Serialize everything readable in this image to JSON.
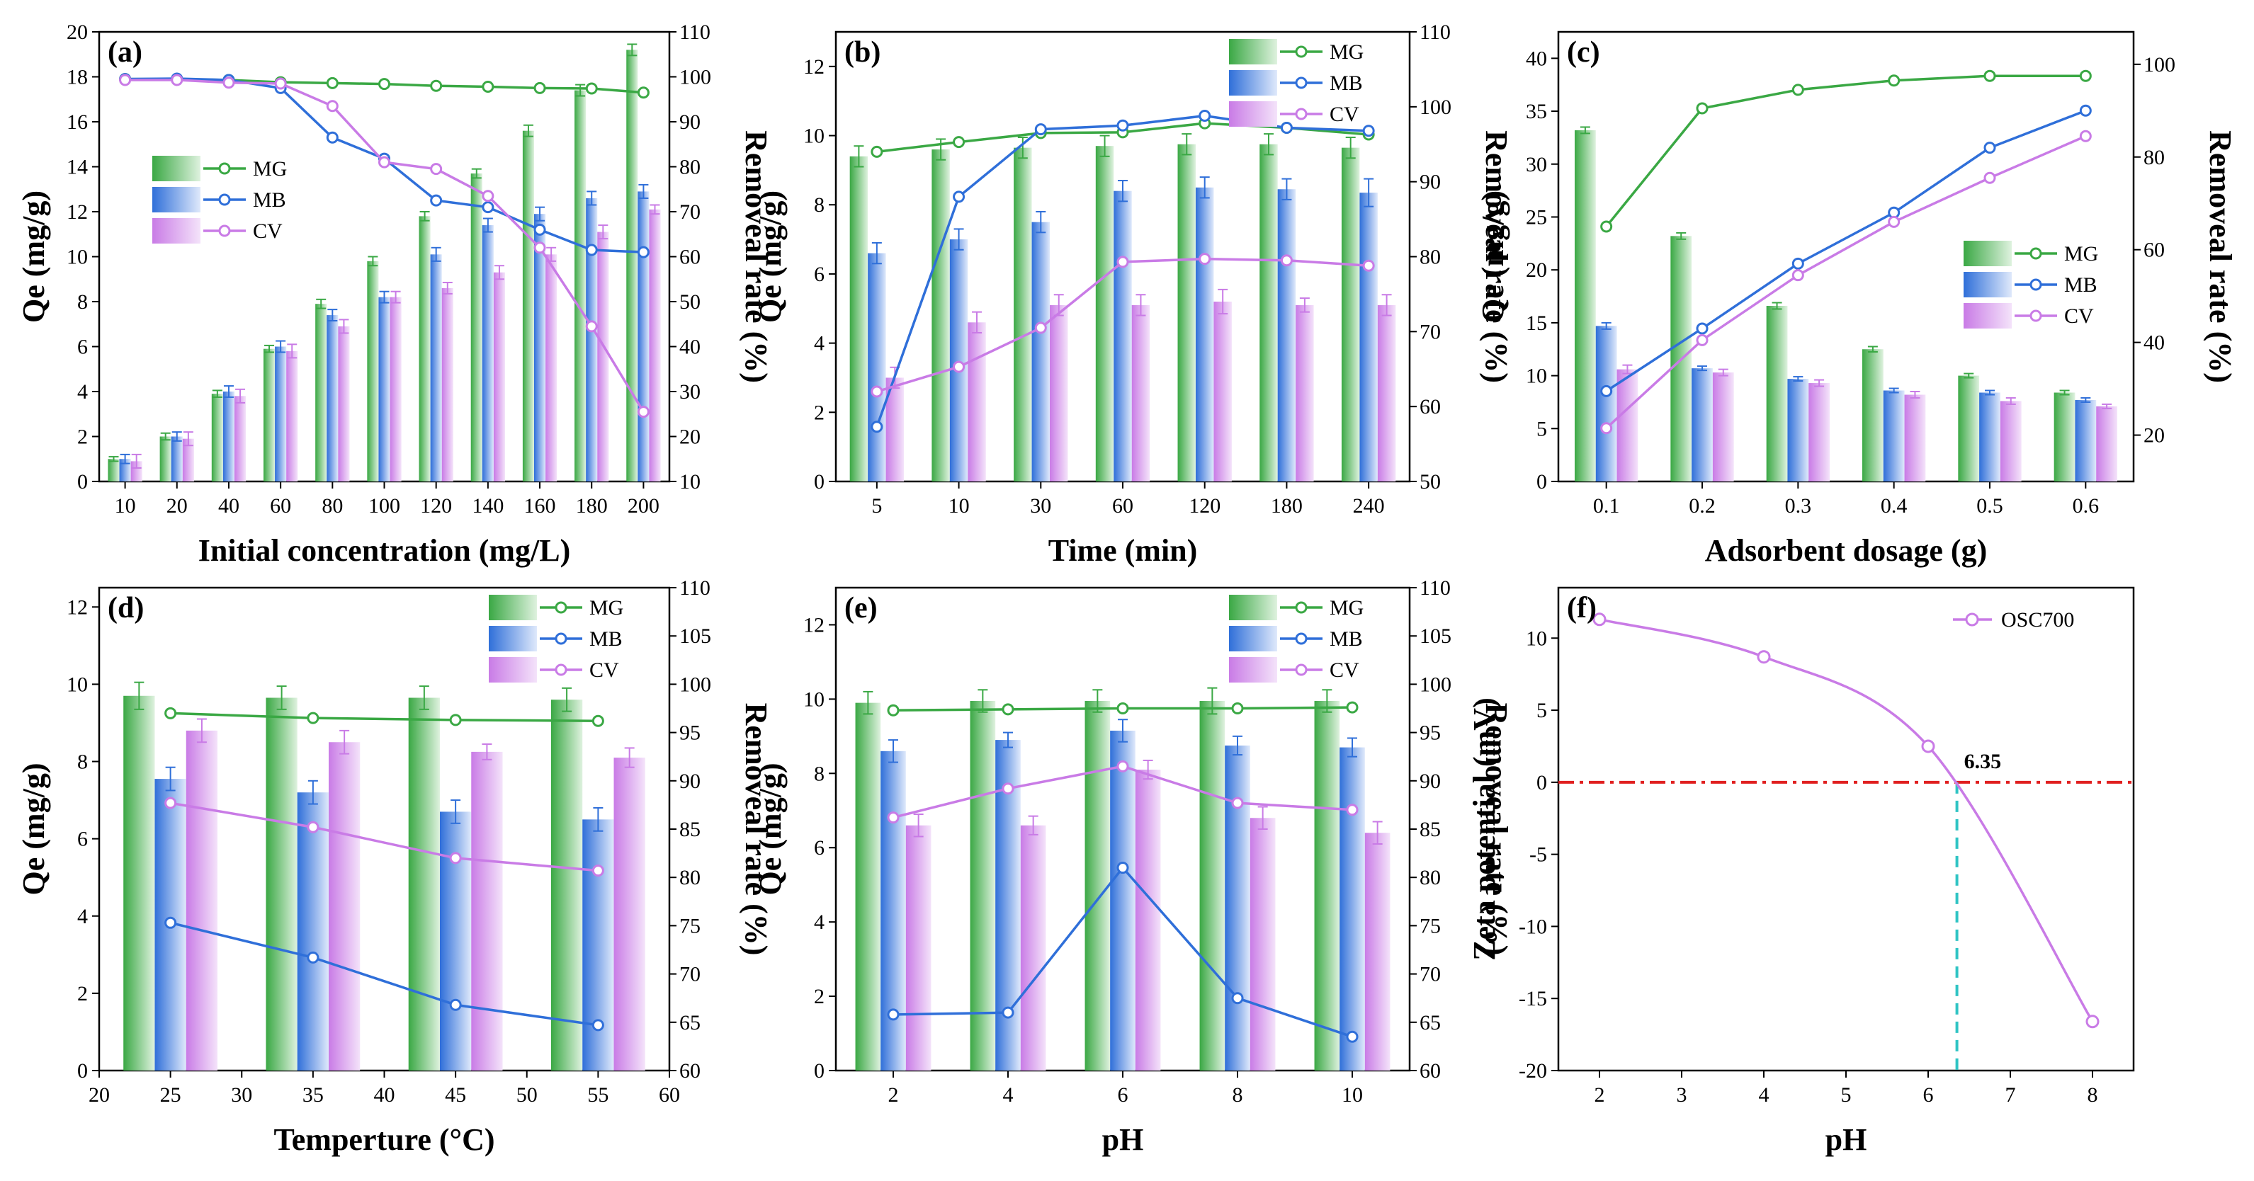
{
  "colors": {
    "MG": "#3aa844",
    "MG_light": "#dff2df",
    "MB": "#2f6fd9",
    "MB_light": "#dfe9fb",
    "CV": "#c97be6",
    "CV_light": "#f4e3fa",
    "zero_line": "#e02020",
    "pzc_line": "#30c4c4"
  },
  "chart_data": [
    {
      "panel": "(a)",
      "type": "bar+line",
      "xlabel": "Initial concentration (mg/L)",
      "ylabel": "Qe (mg/g)",
      "y2label": "Removeal rate (%)",
      "categories": [
        "10",
        "20",
        "40",
        "60",
        "80",
        "100",
        "120",
        "140",
        "160",
        "180",
        "200"
      ],
      "ylim": [
        0,
        20
      ],
      "yticks": [
        0,
        2,
        4,
        6,
        8,
        10,
        12,
        14,
        16,
        18,
        20
      ],
      "y2lim": [
        10,
        110
      ],
      "y2ticks": [
        10,
        20,
        30,
        40,
        50,
        60,
        70,
        80,
        90,
        100,
        110
      ],
      "legend": [
        "MG",
        "MB",
        "CV"
      ],
      "legend_pos": "center-left",
      "bars": [
        {
          "name": "MG",
          "values": [
            1.0,
            2.0,
            3.9,
            5.9,
            7.9,
            9.8,
            11.8,
            13.7,
            15.6,
            17.4,
            19.2
          ],
          "err": [
            0.1,
            0.15,
            0.15,
            0.15,
            0.2,
            0.2,
            0.2,
            0.2,
            0.25,
            0.25,
            0.25
          ]
        },
        {
          "name": "MB",
          "values": [
            1.0,
            2.0,
            4.0,
            6.0,
            7.4,
            8.2,
            10.1,
            11.4,
            11.9,
            12.6,
            12.9
          ],
          "err": [
            0.2,
            0.2,
            0.25,
            0.25,
            0.25,
            0.25,
            0.3,
            0.3,
            0.3,
            0.3,
            0.3
          ]
        },
        {
          "name": "CV",
          "values": [
            0.9,
            1.9,
            3.8,
            5.8,
            6.9,
            8.2,
            8.6,
            9.3,
            10.1,
            11.1,
            12.1
          ],
          "err": [
            0.3,
            0.3,
            0.3,
            0.3,
            0.3,
            0.25,
            0.25,
            0.3,
            0.3,
            0.3,
            0.2
          ]
        }
      ],
      "lines": [
        {
          "name": "MG",
          "values": [
            99.5,
            99.5,
            99.3,
            98.8,
            98.6,
            98.4,
            98.0,
            97.8,
            97.5,
            97.4,
            96.5
          ]
        },
        {
          "name": "MB",
          "values": [
            99.5,
            99.6,
            99.3,
            97.5,
            86.5,
            81.8,
            72.5,
            71.0,
            66.0,
            61.5,
            61.0
          ]
        },
        {
          "name": "CV",
          "values": [
            99.3,
            99.3,
            98.7,
            98.5,
            93.5,
            81.0,
            79.5,
            73.5,
            62.0,
            44.5,
            25.5
          ]
        }
      ]
    },
    {
      "panel": "(b)",
      "type": "bar+line",
      "xlabel": "Time (min)",
      "ylabel": "Qe (mg/g)",
      "y2label": "Removeal rate (%)",
      "categories": [
        "5",
        "10",
        "30",
        "60",
        "120",
        "180",
        "240"
      ],
      "ylim": [
        0,
        13
      ],
      "yticks": [
        0,
        2,
        4,
        6,
        8,
        10,
        12
      ],
      "y2lim": [
        50,
        110
      ],
      "y2ticks": [
        50,
        60,
        70,
        80,
        90,
        100,
        110
      ],
      "legend": [
        "MG",
        "MB",
        "CV"
      ],
      "legend_pos": "top-right",
      "bars": [
        {
          "name": "MG",
          "values": [
            9.4,
            9.6,
            9.65,
            9.7,
            9.75,
            9.75,
            9.65
          ],
          "err": [
            0.3,
            0.3,
            0.3,
            0.3,
            0.3,
            0.3,
            0.3
          ]
        },
        {
          "name": "MB",
          "values": [
            6.6,
            7.0,
            7.5,
            8.4,
            8.5,
            8.45,
            8.35
          ],
          "err": [
            0.3,
            0.3,
            0.3,
            0.3,
            0.3,
            0.3,
            0.4
          ]
        },
        {
          "name": "CV",
          "values": [
            3.0,
            4.6,
            5.1,
            5.1,
            5.2,
            5.1,
            5.1
          ],
          "err": [
            0.3,
            0.3,
            0.3,
            0.3,
            0.35,
            0.2,
            0.3
          ]
        }
      ],
      "lines": [
        {
          "name": "MG",
          "values": [
            94.0,
            95.3,
            96.5,
            96.6,
            97.8,
            97.2,
            96.3
          ]
        },
        {
          "name": "MB",
          "values": [
            57.3,
            88.0,
            97.0,
            97.5,
            98.8,
            97.2,
            96.8
          ]
        },
        {
          "name": "CV",
          "values": [
            62.0,
            65.3,
            70.5,
            79.3,
            79.7,
            79.5,
            78.8
          ]
        }
      ]
    },
    {
      "panel": "(c)",
      "type": "bar+line",
      "xlabel": "Adsorbent dosage (g)",
      "ylabel": "Qe (mg/g)",
      "y2label": "Removeal rate (%)",
      "categories": [
        "0.1",
        "0.2",
        "0.3",
        "0.4",
        "0.5",
        "0.6"
      ],
      "ylim": [
        0,
        42.5
      ],
      "yticks": [
        0,
        5,
        10,
        15,
        20,
        25,
        30,
        35,
        40
      ],
      "y2lim": [
        10,
        107
      ],
      "y2ticks": [
        20,
        40,
        60,
        80,
        100
      ],
      "legend": [
        "MG",
        "MB",
        "CV"
      ],
      "legend_pos": "center-right",
      "bars": [
        {
          "name": "MG",
          "values": [
            33.2,
            23.2,
            16.6,
            12.5,
            10.0,
            8.4
          ],
          "err": [
            0.3,
            0.3,
            0.3,
            0.25,
            0.2,
            0.2
          ]
        },
        {
          "name": "MB",
          "values": [
            14.7,
            10.7,
            9.7,
            8.6,
            8.4,
            7.7
          ],
          "err": [
            0.3,
            0.2,
            0.2,
            0.2,
            0.2,
            0.2
          ]
        },
        {
          "name": "CV",
          "values": [
            10.6,
            10.3,
            9.3,
            8.2,
            7.6,
            7.1
          ],
          "err": [
            0.4,
            0.3,
            0.3,
            0.3,
            0.3,
            0.2
          ]
        }
      ],
      "lines": [
        {
          "name": "MG",
          "values": [
            65.0,
            90.5,
            94.5,
            96.5,
            97.5,
            97.5
          ]
        },
        {
          "name": "MB",
          "values": [
            29.5,
            43.0,
            57.0,
            68.0,
            82.0,
            90.0
          ]
        },
        {
          "name": "CV",
          "values": [
            21.5,
            40.5,
            54.5,
            66.0,
            75.5,
            84.5
          ]
        }
      ]
    },
    {
      "panel": "(d)",
      "type": "bar+line",
      "xlabel": "Temperture (°C)",
      "ylabel": "Qe (mg/g)",
      "y2label": "Removeal rate (%)",
      "x_numeric": true,
      "xlim": [
        20,
        60
      ],
      "xticks": [
        20,
        25,
        30,
        35,
        40,
        45,
        50,
        55,
        60
      ],
      "x": [
        25,
        35,
        45,
        55
      ],
      "ylim": [
        0,
        12.5
      ],
      "yticks": [
        0,
        2,
        4,
        6,
        8,
        10,
        12
      ],
      "y2lim": [
        60,
        110
      ],
      "y2ticks": [
        60,
        65,
        70,
        75,
        80,
        85,
        90,
        95,
        100,
        105,
        110
      ],
      "legend": [
        "MG",
        "MB",
        "CV"
      ],
      "legend_pos": "top-right",
      "bars": [
        {
          "name": "MG",
          "values": [
            9.7,
            9.65,
            9.65,
            9.6
          ],
          "err": [
            0.35,
            0.3,
            0.3,
            0.3
          ]
        },
        {
          "name": "MB",
          "values": [
            7.55,
            7.2,
            6.7,
            6.5
          ],
          "err": [
            0.3,
            0.3,
            0.3,
            0.3
          ]
        },
        {
          "name": "CV",
          "values": [
            8.8,
            8.5,
            8.25,
            8.1
          ],
          "err": [
            0.3,
            0.3,
            0.2,
            0.25
          ]
        }
      ],
      "lines": [
        {
          "name": "MG",
          "values": [
            97.0,
            96.5,
            96.3,
            96.2
          ]
        },
        {
          "name": "MB",
          "values": [
            75.3,
            71.7,
            66.8,
            64.7
          ]
        },
        {
          "name": "CV",
          "values": [
            87.7,
            85.2,
            82.0,
            80.7
          ]
        }
      ]
    },
    {
      "panel": "(e)",
      "type": "bar+line",
      "xlabel": "pH",
      "ylabel": "Qe (mg/g)",
      "y2label": "Removeal rate (%)",
      "x_numeric": true,
      "xlim": [
        1,
        11
      ],
      "xticks": [
        2,
        4,
        6,
        8,
        10
      ],
      "x": [
        2,
        4,
        6,
        8,
        10
      ],
      "ylim": [
        0,
        13
      ],
      "yticks": [
        0,
        2,
        4,
        6,
        8,
        10,
        12
      ],
      "y2lim": [
        60,
        110
      ],
      "y2ticks": [
        60,
        65,
        70,
        75,
        80,
        85,
        90,
        95,
        100,
        105,
        110
      ],
      "legend": [
        "MG",
        "MB",
        "CV"
      ],
      "legend_pos": "top-right",
      "bars": [
        {
          "name": "MG",
          "values": [
            9.9,
            9.95,
            9.95,
            9.95,
            9.95
          ],
          "err": [
            0.3,
            0.3,
            0.3,
            0.35,
            0.3
          ]
        },
        {
          "name": "MB",
          "values": [
            8.6,
            8.9,
            9.15,
            8.75,
            8.7
          ],
          "err": [
            0.3,
            0.2,
            0.3,
            0.25,
            0.25
          ]
        },
        {
          "name": "CV",
          "values": [
            6.6,
            6.6,
            8.1,
            6.8,
            6.4
          ],
          "err": [
            0.3,
            0.25,
            0.25,
            0.3,
            0.3
          ]
        }
      ],
      "lines": [
        {
          "name": "MG",
          "values": [
            97.3,
            97.4,
            97.5,
            97.5,
            97.6
          ]
        },
        {
          "name": "MB",
          "values": [
            65.8,
            66.0,
            81.0,
            67.5,
            63.5
          ]
        },
        {
          "name": "CV",
          "values": [
            86.2,
            89.2,
            91.5,
            87.7,
            87.0
          ]
        }
      ]
    },
    {
      "panel": "(f)",
      "type": "line",
      "xlabel": "pH",
      "ylabel": "Zeta potential (mV)",
      "xlim": [
        1.5,
        8.5
      ],
      "xticks": [
        2,
        3,
        4,
        5,
        6,
        7,
        8
      ],
      "ylim": [
        -20,
        13.5
      ],
      "yticks": [
        -20,
        -15,
        -10,
        -5,
        0,
        5,
        10
      ],
      "series": [
        {
          "name": "OSC700",
          "x": [
            2,
            4,
            6,
            8
          ],
          "y": [
            11.3,
            8.7,
            2.5,
            -16.6
          ]
        }
      ],
      "annotation": "6.35",
      "pzc": 6.35,
      "legend": [
        "OSC700"
      ],
      "legend_pos": "top-right"
    }
  ]
}
